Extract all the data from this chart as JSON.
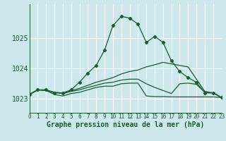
{
  "bg_color": "#cce8ed",
  "grid_color": "#b8d8dc",
  "line_color": "#1a5e2a",
  "xlabel": "Graphe pression niveau de la mer (hPa)",
  "ylabel_ticks": [
    1023,
    1024,
    1025
  ],
  "xlim": [
    0,
    23
  ],
  "ylim": [
    1022.55,
    1026.1
  ],
  "xticks": [
    0,
    1,
    2,
    3,
    4,
    5,
    6,
    7,
    8,
    9,
    10,
    11,
    12,
    13,
    14,
    15,
    16,
    17,
    18,
    19,
    20,
    21,
    22,
    23
  ],
  "series_main": [
    1023.15,
    1023.3,
    1023.3,
    1023.2,
    1023.2,
    1023.3,
    1023.55,
    1023.85,
    1024.1,
    1024.6,
    1025.4,
    1025.7,
    1025.65,
    1025.45,
    1024.85,
    1025.05,
    1024.85,
    1024.25,
    1023.9,
    1023.7,
    1023.55,
    1023.2,
    1023.2,
    1023.05
  ],
  "series2": [
    1023.15,
    1023.3,
    1023.28,
    1023.22,
    1023.2,
    1023.27,
    1023.35,
    1023.45,
    1023.55,
    1023.62,
    1023.7,
    1023.82,
    1023.9,
    1023.95,
    1024.05,
    1024.12,
    1024.2,
    1024.15,
    1024.1,
    1024.05,
    1023.65,
    1023.25,
    1023.2,
    1023.05
  ],
  "series3": [
    1023.15,
    1023.3,
    1023.28,
    1023.15,
    1023.1,
    1023.18,
    1023.22,
    1023.3,
    1023.38,
    1023.42,
    1023.42,
    1023.5,
    1023.52,
    1023.52,
    1023.1,
    1023.08,
    1023.08,
    1023.07,
    1023.07,
    1023.07,
    1023.07,
    1023.07,
    1023.07,
    1023.05
  ],
  "series4": [
    1023.15,
    1023.3,
    1023.3,
    1023.22,
    1023.18,
    1023.25,
    1023.3,
    1023.38,
    1023.45,
    1023.52,
    1023.55,
    1023.62,
    1023.65,
    1023.65,
    1023.5,
    1023.38,
    1023.28,
    1023.18,
    1023.5,
    1023.52,
    1023.48,
    1023.22,
    1023.2,
    1023.05
  ],
  "marker_style": "D",
  "marker_size": 2.2,
  "line_width": 0.9,
  "font_size_xlabel": 7,
  "font_size_ytick": 7,
  "font_size_xtick": 5.5
}
